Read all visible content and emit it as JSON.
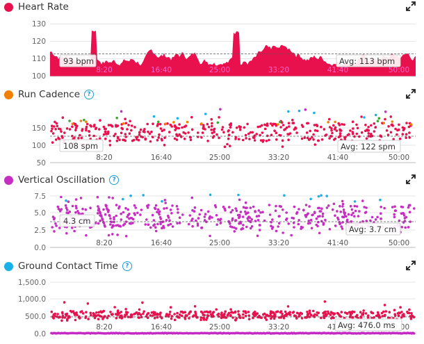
{
  "x_labels": [
    "8:20",
    "16:40",
    "25:00",
    "33:20",
    "41:40",
    "50:00"
  ],
  "colors": {
    "heart": "#e8114d",
    "cadence": "#f08000",
    "oscillation": "#c62ec1",
    "contact": "#1ab0e8",
    "green": "#3da831",
    "purple_gct": "#c52ac4"
  },
  "panels": {
    "heart_rate": {
      "title": "Heart Rate",
      "y_ticks": [
        "130",
        "120",
        "110",
        "100"
      ],
      "callout_left": "93 bpm",
      "callout_avg": "Avg: 113 bpm"
    },
    "run_cadence": {
      "title": "Run Cadence",
      "help_icon": "?",
      "y_ticks": [
        "150",
        "100",
        "50"
      ],
      "callout_left": "108 spm",
      "callout_avg": "Avg: 122 spm"
    },
    "vertical_oscillation": {
      "title": "Vertical Oscillation",
      "help_icon": "?",
      "y_ticks": [
        "7.5",
        "5.0",
        "2.5",
        "0.0"
      ],
      "callout_left": "4.3 cm",
      "callout_avg": "Avg: 3.7 cm"
    },
    "ground_contact_time": {
      "title": "Ground Contact Time",
      "help_icon": "?",
      "y_ticks": [
        "1,500.0",
        "1,000.0",
        "500.0",
        "0.0"
      ],
      "callout_avg": "Avg: 476.0 ms"
    }
  },
  "chart_data": [
    {
      "type": "area",
      "title": "Heart Rate",
      "ylim": [
        100,
        130
      ],
      "xlim_s": [
        0,
        3100
      ],
      "avg": 113,
      "unit": "bpm",
      "x_ticks": [
        "8:20",
        "16:40",
        "25:00",
        "33:20",
        "41:40",
        "50:00"
      ]
    },
    {
      "type": "scatter",
      "title": "Run Cadence",
      "ylim": [
        50,
        200
      ],
      "avg": 122,
      "unit": "spm",
      "x_ticks": [
        "8:20",
        "16:40",
        "25:00",
        "33:20",
        "41:40",
        "50:00"
      ]
    },
    {
      "type": "scatter",
      "title": "Vertical Oscillation",
      "ylim": [
        0,
        8
      ],
      "avg": 3.7,
      "unit": "cm",
      "x_ticks": [
        "8:20",
        "16:40",
        "25:00",
        "33:20",
        "41:40",
        "50:00"
      ]
    },
    {
      "type": "scatter",
      "title": "Ground Contact Time",
      "ylim": [
        0,
        1600
      ],
      "avg": 476.0,
      "unit": "ms",
      "x_ticks": [
        "8:20",
        "16:40",
        "25:00",
        "33:20",
        "41:40",
        "50:00"
      ]
    }
  ]
}
